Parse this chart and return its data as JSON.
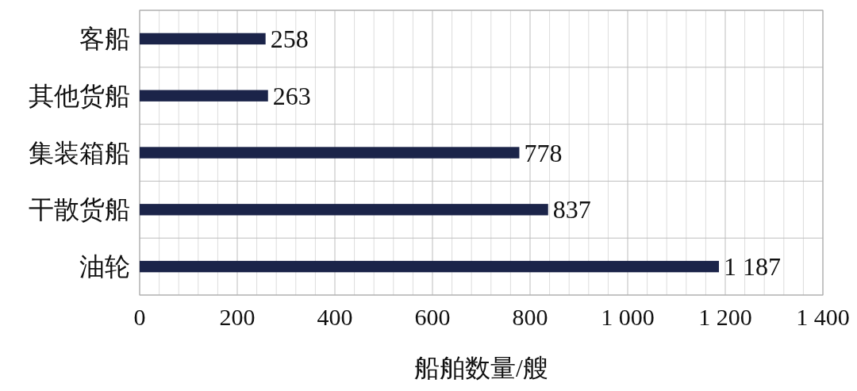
{
  "chart_data": {
    "type": "bar",
    "orientation": "horizontal",
    "xlabel": "船舶数量/艘",
    "categories": [
      "客船",
      "其他货船",
      "集装箱船",
      "干散货船",
      "油轮"
    ],
    "values": [
      258,
      263,
      778,
      837,
      1187
    ],
    "value_labels": [
      "258",
      "263",
      "778",
      "837",
      "1 187"
    ],
    "color": "#1b2449",
    "xlim": [
      0,
      1400
    ],
    "xticks": [
      0,
      {
        "value": 40,
        "label": null
      },
      {
        "value": 80,
        "label": null
      },
      {
        "value": 120,
        "label": null
      },
      {
        "value": 160,
        "label": null
      },
      200,
      {
        "value": 240,
        "label": null
      },
      {
        "value": 280,
        "label": null
      },
      {
        "value": 320,
        "label": null
      },
      {
        "value": 360,
        "label": null
      },
      400,
      {
        "value": 440,
        "label": null
      },
      {
        "value": 480,
        "label": null
      },
      {
        "value": 520,
        "label": null
      },
      {
        "value": 560,
        "label": null
      },
      600,
      {
        "value": 640,
        "label": null
      },
      {
        "value": 680,
        "label": null
      },
      {
        "value": 720,
        "label": null
      },
      {
        "value": 760,
        "label": null
      },
      800,
      {
        "value": 840,
        "label": null
      },
      {
        "value": 880,
        "label": null
      },
      {
        "value": 920,
        "label": null
      },
      {
        "value": 960,
        "label": null
      },
      {
        "value": 1000,
        "label": "1 000"
      },
      {
        "value": 1040,
        "label": null
      },
      {
        "value": 1080,
        "label": null
      },
      {
        "value": 1120,
        "label": null
      },
      {
        "value": 1160,
        "label": null
      },
      {
        "value": 1200,
        "label": "1 200"
      },
      {
        "value": 1240,
        "label": null
      },
      {
        "value": 1280,
        "label": null
      },
      {
        "value": 1320,
        "label": null
      },
      {
        "value": 1360,
        "label": null
      },
      {
        "value": 1400,
        "label": "1 400"
      }
    ],
    "grid": true
  }
}
